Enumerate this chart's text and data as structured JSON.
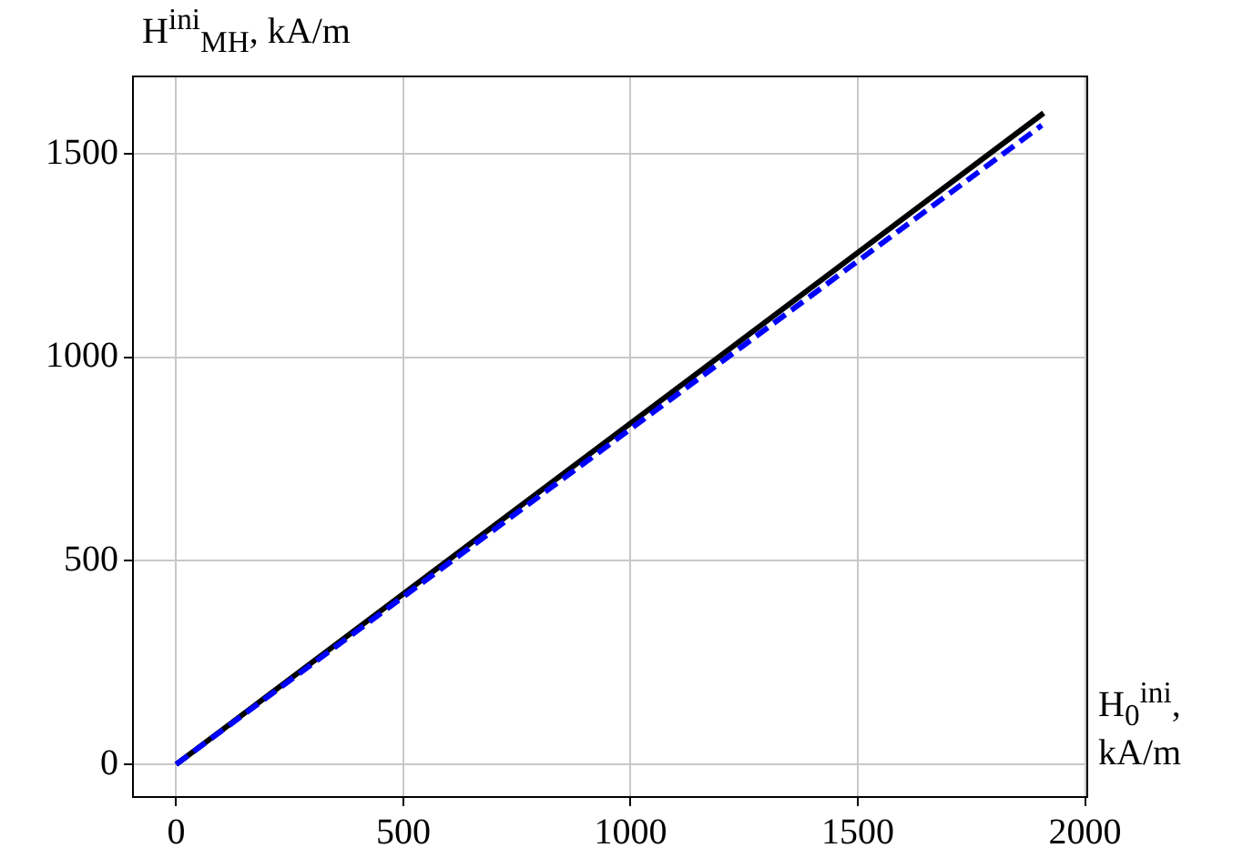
{
  "chart_data": {
    "type": "line",
    "xlabel": "H$_{0}$$^{ini}$, kA/m",
    "ylabel": "H$^{ini}$$_{MH}$, kA/m",
    "xlim": [
      -95,
      2005
    ],
    "xticks": [
      0,
      500,
      1000,
      1500,
      2000
    ],
    "ylim": [
      -80,
      1690
    ],
    "yticks": [
      0,
      500,
      1000,
      1500
    ],
    "grid": true,
    "marker": "none",
    "series": [
      {
        "color": "#000000",
        "line_style": "solid",
        "x": [
          0,
          1909
        ],
        "values": [
          0,
          1600
        ]
      },
      {
        "color": "#0000ff",
        "line_style": "dashed",
        "x": [
          0,
          1905
        ],
        "values": [
          0,
          1570
        ]
      }
    ]
  }
}
